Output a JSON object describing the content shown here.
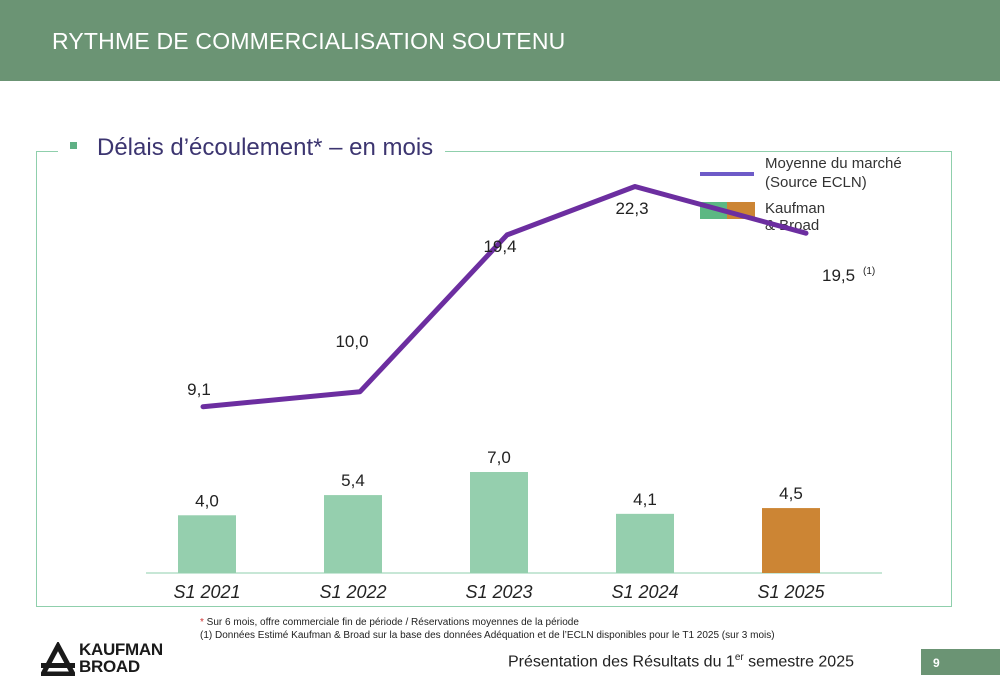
{
  "header": {
    "title": "RYTHME DE COMMERCIALISATION SOUTENU"
  },
  "section": {
    "title": "Délais d’écoulement* – en mois"
  },
  "legend": {
    "line_label_1": "Moyenne du marché",
    "line_label_2": "(Source ECLN)",
    "bar_label": "Kaufman & Broad"
  },
  "chart_data": {
    "type": "bar",
    "title": "Délais d’écoulement* – en mois",
    "categories": [
      "S1 2021",
      "S1 2022",
      "S1 2023",
      "S1 2024",
      "S1 2025"
    ],
    "series": [
      {
        "name": "Kaufman & Broad",
        "kind": "bar",
        "values": [
          4.0,
          5.4,
          7.0,
          4.1,
          4.5
        ],
        "labels": [
          "4,0",
          "5,4",
          "7,0",
          "4,1",
          "4,5"
        ],
        "colors": [
          "#95cfae",
          "#95cfae",
          "#95cfae",
          "#95cfae",
          "#cc8534"
        ]
      },
      {
        "name": "Moyenne du marché (Source ECLN)",
        "kind": "line",
        "values": [
          9.1,
          10.0,
          19.4,
          22.3,
          19.5
        ],
        "labels": [
          "9,1",
          "10,0",
          "19,4",
          "22,3",
          "19,5"
        ],
        "color": "#6c2ea0"
      }
    ],
    "last_point_note": "(1)",
    "grid": false,
    "legend_position": "top-right"
  },
  "footnotes": {
    "star_mark": "*",
    "line1": " Sur 6 mois, offre commerciale fin de période / Réservations moyennes de la période",
    "line2": "(1) Données Estimé Kaufman & Broad sur la base des données Adéquation et de l’ECLN disponibles pour le T1 2025 (sur 3 mois)"
  },
  "logo": {
    "line1": "KAUFMAN",
    "line2": "BROAD"
  },
  "footer": {
    "title_before": "Présentation des Résultats du 1",
    "title_sup": "er",
    "title_after": " semestre 2025",
    "page": "9"
  }
}
